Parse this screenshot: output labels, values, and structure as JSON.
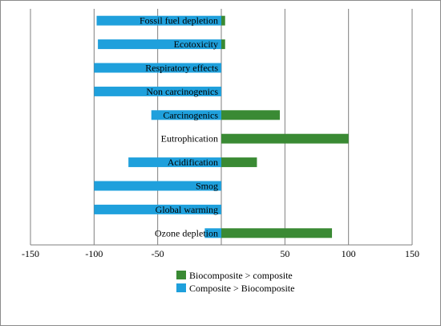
{
  "chart_data": {
    "type": "bar",
    "orientation": "horizontal",
    "categories": [
      "Fossil fuel depletion",
      "Ecotoxicity",
      "Respiratory effects",
      "Non carcinogenics",
      "Carcinogenics",
      "Eutrophication",
      "Acidification",
      "Smog",
      "Global warming",
      "Ozone depletion"
    ],
    "series": [
      {
        "name": "Biocomposite > composite",
        "color": "#3a8a34",
        "values": [
          3,
          3,
          0,
          0,
          46,
          100,
          28,
          0,
          0,
          87
        ]
      },
      {
        "name": "Composite > Biocomposite",
        "color": "#1fa0dc",
        "values": [
          -98,
          -97,
          -100,
          -100,
          -55,
          0,
          -73,
          -100,
          -100,
          -13
        ]
      }
    ],
    "xlim": [
      -150,
      150
    ],
    "xticks": [
      -150,
      -100,
      -50,
      0,
      50,
      100,
      150
    ],
    "xtick_labels": [
      "-150",
      "-100",
      "-50",
      "",
      "50",
      "100",
      "150"
    ],
    "grid": "vertical",
    "legend_position": "bottom-center",
    "title": "",
    "xlabel": "",
    "ylabel": ""
  }
}
